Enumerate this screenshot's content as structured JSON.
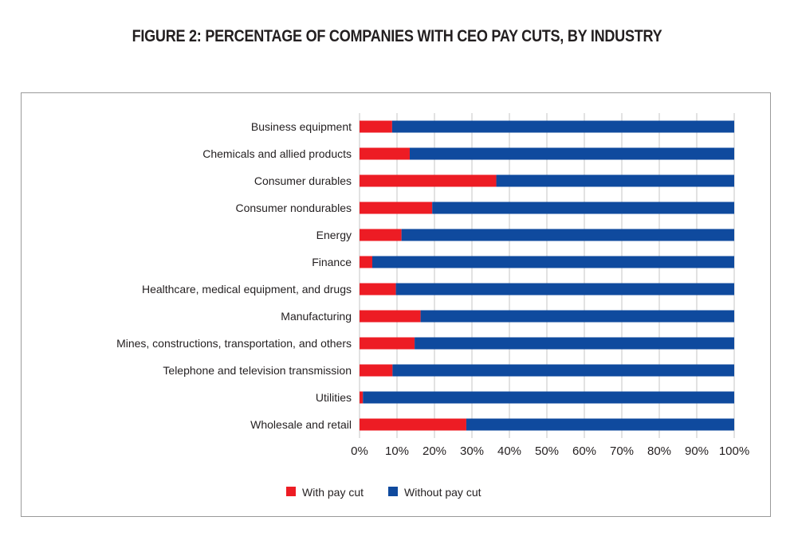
{
  "chart_data": {
    "type": "bar",
    "orientation": "horizontal",
    "stacked": "100%",
    "title": "FIGURE 2: PERCENTAGE OF COMPANIES WITH CEO PAY CUTS, BY INDUSTRY",
    "xlabel": "",
    "ylabel": "",
    "xlim": [
      0,
      100
    ],
    "x_ticks": [
      "0%",
      "10%",
      "20%",
      "30%",
      "40%",
      "50%",
      "60%",
      "70%",
      "80%",
      "90%",
      "100%"
    ],
    "grid": "vertical",
    "legend_position": "bottom",
    "categories": [
      "Business equipment",
      "Chemicals and allied products",
      "Consumer durables",
      "Consumer nondurables",
      "Energy",
      "Finance",
      "Healthcare, medical equipment, and drugs",
      "Manufacturing",
      "Mines, constructions, transportation, and others",
      "Telephone and television transmission",
      "Utilities",
      "Wholesale and retail"
    ],
    "series": [
      {
        "name": "With pay cut",
        "color": "#ed1c24",
        "values": [
          8.7,
          13.4,
          36.5,
          19.4,
          11.2,
          3.4,
          9.7,
          16.3,
          14.7,
          8.8,
          0.9,
          28.5
        ]
      },
      {
        "name": "Without pay cut",
        "color": "#0f4a9e",
        "values": [
          91.3,
          86.6,
          63.5,
          80.6,
          88.8,
          96.6,
          90.3,
          83.7,
          85.3,
          91.2,
          99.1,
          71.5
        ]
      }
    ]
  }
}
